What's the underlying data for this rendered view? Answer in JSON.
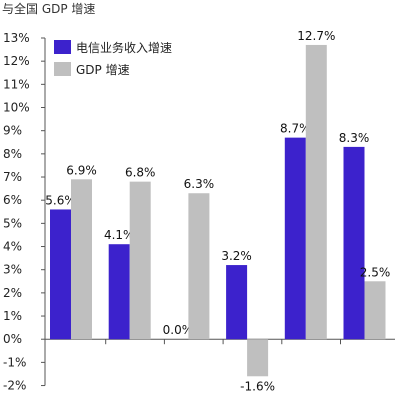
{
  "header": {
    "title": "与全国 GDP 增速"
  },
  "chart_data": {
    "type": "bar",
    "title": "",
    "xlabel": "",
    "ylabel": "",
    "ylim": [
      -2,
      13
    ],
    "yticks": [
      13,
      12,
      11,
      10,
      9,
      8,
      7,
      6,
      5,
      4,
      3,
      2,
      1,
      0,
      -1,
      -2
    ],
    "ytick_labels": [
      "13%",
      "12%",
      "11%",
      "10%",
      "9%",
      "8%",
      "7%",
      "6%",
      "5%",
      "4%",
      "3%",
      "2%",
      "1%",
      "0%",
      "-1%",
      "-2%"
    ],
    "categories": [
      "",
      "",
      "",
      "",
      "",
      ""
    ],
    "series": [
      {
        "name": "电信业务收入增速",
        "color": "#3c22cc",
        "values": [
          5.6,
          4.1,
          0.0,
          3.2,
          8.7,
          8.3
        ],
        "labels": [
          "5.6%",
          "4.1%",
          "0.0%",
          "3.2%",
          "8.7%",
          "8.3%"
        ]
      },
      {
        "name": "GDP 增速",
        "color": "#bfbfbf",
        "values": [
          6.9,
          6.8,
          6.3,
          -1.6,
          12.7,
          2.5
        ],
        "labels": [
          "6.9%",
          "6.8%",
          "6.3%",
          "-1.6%",
          "12.7%",
          "2.5%"
        ]
      }
    ],
    "grid": false,
    "legend": "top-left"
  }
}
